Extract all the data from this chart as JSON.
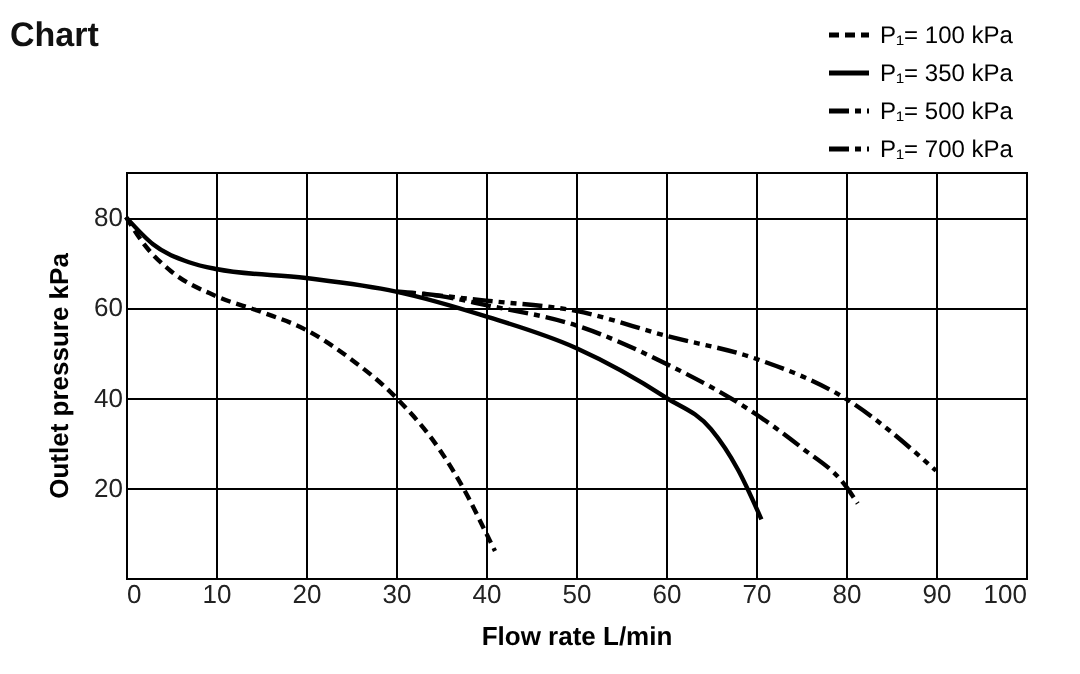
{
  "chart_data": {
    "type": "line",
    "title": "Chart",
    "xlabel": "Flow rate L/min",
    "ylabel": "Outlet pressure kPa",
    "xlim": [
      0,
      100
    ],
    "xticks": [
      0,
      10,
      20,
      30,
      40,
      50,
      60,
      70,
      80,
      90,
      100
    ],
    "ylim": [
      0,
      90
    ],
    "yticks": [
      20,
      40,
      60,
      80
    ],
    "grid": true,
    "legend": "top right",
    "marker": "none",
    "series": [
      {
        "name": "P₁= 100 kPa",
        "color": "#000000",
        "line_style": "dashed",
        "x": [
          0,
          2,
          5,
          10,
          15,
          20,
          25,
          30,
          35,
          38,
          40,
          41
        ],
        "values": [
          80,
          74,
          68,
          62.5,
          59,
          55,
          48.5,
          40,
          28,
          18,
          10,
          6
        ]
      },
      {
        "name": "P₁= 350 kPa",
        "color": "#000000",
        "line_style": "solid",
        "x": [
          0,
          3,
          7,
          10,
          20,
          30,
          40,
          50,
          60,
          65,
          68,
          70.6
        ],
        "values": [
          80,
          74,
          70,
          68.5,
          66.5,
          63.5,
          58,
          51,
          40,
          33,
          24,
          13
        ]
      },
      {
        "name": "P₁= 500 kPa",
        "color": "#000000",
        "line_style": "dashdot",
        "x": [
          30,
          35,
          40,
          50,
          60,
          70,
          75,
          80,
          81.3
        ],
        "values": [
          63.5,
          62.5,
          60.5,
          56,
          47.5,
          36.3,
          29,
          20.3,
          16.5
        ]
      },
      {
        "name": "P₁= 700 kPa",
        "color": "#000000",
        "line_style": "dashdotdot",
        "x": [
          33,
          40,
          50,
          60,
          70,
          80,
          90
        ],
        "values": [
          63,
          61.5,
          59.2,
          53.7,
          48.6,
          39.7,
          23.8
        ]
      }
    ]
  }
}
